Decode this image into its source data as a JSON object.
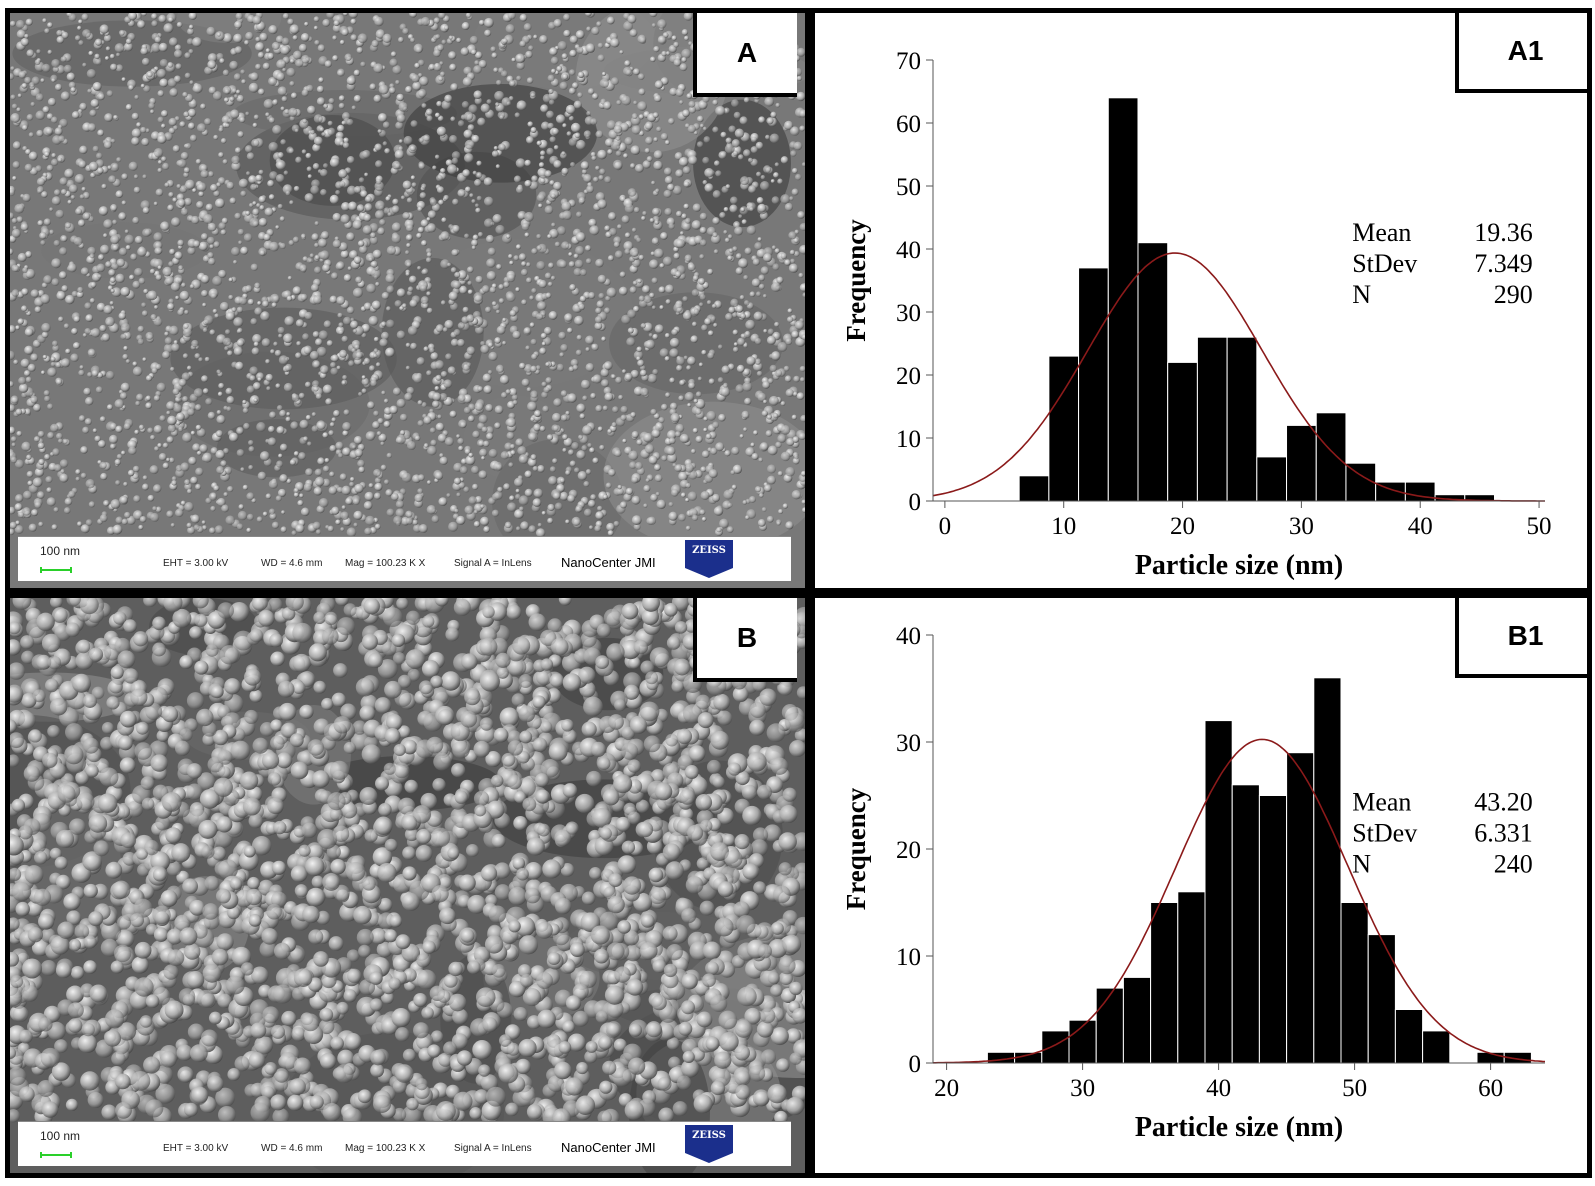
{
  "panels": {
    "A": {
      "label": "A"
    },
    "B": {
      "label": "B"
    },
    "A1": {
      "label": "A1"
    },
    "B1": {
      "label": "B1"
    }
  },
  "sem_info": {
    "scale": "100 nm",
    "eht": "EHT =  3.00 kV",
    "wd": "WD =  4.6 mm",
    "mag": "Mag =  100.23 K X",
    "signal": "Signal A = InLens",
    "center": "NanoCenter JMI",
    "logo": "ZEISS",
    "scale_color": "#2ad02a",
    "logo_color": "#1b2f8c"
  },
  "colors": {
    "bars": "#000000",
    "bar_edge": "#ffffff",
    "fit_curve": "#8b1a1a"
  },
  "chart_data": [
    {
      "type": "bar",
      "subtype": "histogram with normal fit",
      "panel": "A1",
      "xlabel": "Particle size (nm)",
      "ylabel": "Frequency",
      "xlim": [
        -1,
        50.5
      ],
      "ylim": [
        0,
        70
      ],
      "xticks": [
        0,
        10,
        20,
        30,
        40,
        50
      ],
      "yticks": [
        0,
        10,
        20,
        30,
        40,
        50,
        60,
        70
      ],
      "bin_width": 2.5,
      "bins": [
        {
          "x0": 6.25,
          "count": 4
        },
        {
          "x0": 8.75,
          "count": 23
        },
        {
          "x0": 11.25,
          "count": 37
        },
        {
          "x0": 13.75,
          "count": 64
        },
        {
          "x0": 16.25,
          "count": 41
        },
        {
          "x0": 18.75,
          "count": 22
        },
        {
          "x0": 21.25,
          "count": 26
        },
        {
          "x0": 23.75,
          "count": 26
        },
        {
          "x0": 26.25,
          "count": 7
        },
        {
          "x0": 28.75,
          "count": 12
        },
        {
          "x0": 31.25,
          "count": 14
        },
        {
          "x0": 33.75,
          "count": 6
        },
        {
          "x0": 36.25,
          "count": 3
        },
        {
          "x0": 38.75,
          "count": 3
        },
        {
          "x0": 41.25,
          "count": 1
        },
        {
          "x0": 43.75,
          "count": 1
        }
      ],
      "fit": {
        "type": "normal",
        "mean": 19.36,
        "sd": 7.349,
        "n": 290
      },
      "stats": [
        {
          "label": "Mean",
          "value": "19.36"
        },
        {
          "label": "StDev",
          "value": "7.349"
        },
        {
          "label": "N",
          "value": "290"
        }
      ],
      "legend_position": "right",
      "grid": false
    },
    {
      "type": "bar",
      "subtype": "histogram with normal fit",
      "panel": "B1",
      "xlabel": "Particle size (nm)",
      "ylabel": "Frequency",
      "xlim": [
        19,
        64
      ],
      "ylim": [
        0,
        40
      ],
      "xticks": [
        20,
        30,
        40,
        50,
        60
      ],
      "yticks": [
        0,
        10,
        20,
        30,
        40
      ],
      "bin_width": 2,
      "bins": [
        {
          "x0": 23,
          "count": 1
        },
        {
          "x0": 25,
          "count": 1
        },
        {
          "x0": 27,
          "count": 3
        },
        {
          "x0": 29,
          "count": 4
        },
        {
          "x0": 31,
          "count": 7
        },
        {
          "x0": 33,
          "count": 8
        },
        {
          "x0": 35,
          "count": 15
        },
        {
          "x0": 37,
          "count": 16
        },
        {
          "x0": 39,
          "count": 32
        },
        {
          "x0": 41,
          "count": 26
        },
        {
          "x0": 43,
          "count": 25
        },
        {
          "x0": 45,
          "count": 29
        },
        {
          "x0": 47,
          "count": 36
        },
        {
          "x0": 49,
          "count": 15
        },
        {
          "x0": 51,
          "count": 12
        },
        {
          "x0": 53,
          "count": 5
        },
        {
          "x0": 55,
          "count": 3
        },
        {
          "x0": 57,
          "count": 0
        },
        {
          "x0": 59,
          "count": 1
        },
        {
          "x0": 61,
          "count": 1
        }
      ],
      "fit": {
        "type": "normal",
        "mean": 43.2,
        "sd": 6.331,
        "n": 240
      },
      "stats": [
        {
          "label": "Mean",
          "value": "43.20"
        },
        {
          "label": "StDev",
          "value": "6.331"
        },
        {
          "label": "N",
          "value": "240"
        }
      ],
      "legend_position": "right",
      "grid": false
    }
  ]
}
